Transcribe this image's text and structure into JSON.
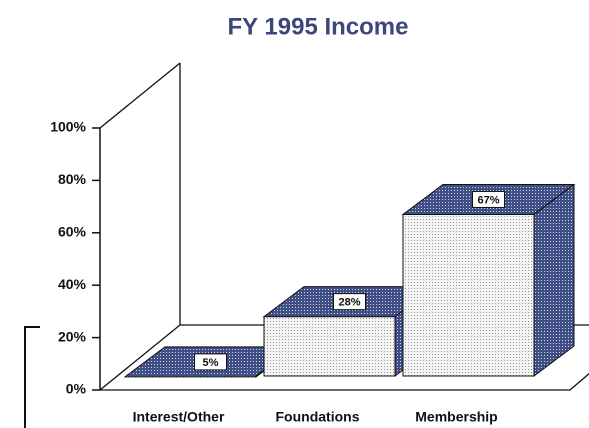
{
  "chart_data": {
    "type": "bar3d",
    "title": "FY 1995 Income",
    "categories": [
      "Interest/Other",
      "Foundations",
      "Membership"
    ],
    "values": [
      5,
      28,
      67
    ],
    "value_labels": [
      "5%",
      "28%",
      "67%"
    ],
    "ylim": [
      0,
      100
    ],
    "yticks": [
      {
        "value": 0,
        "label": "0%"
      },
      {
        "value": 20,
        "label": "20%"
      },
      {
        "value": 40,
        "label": "40%"
      },
      {
        "value": 60,
        "label": "60%"
      },
      {
        "value": 80,
        "label": "80%"
      },
      {
        "value": 100,
        "label": "100%"
      }
    ],
    "color": "#3f4f86"
  }
}
